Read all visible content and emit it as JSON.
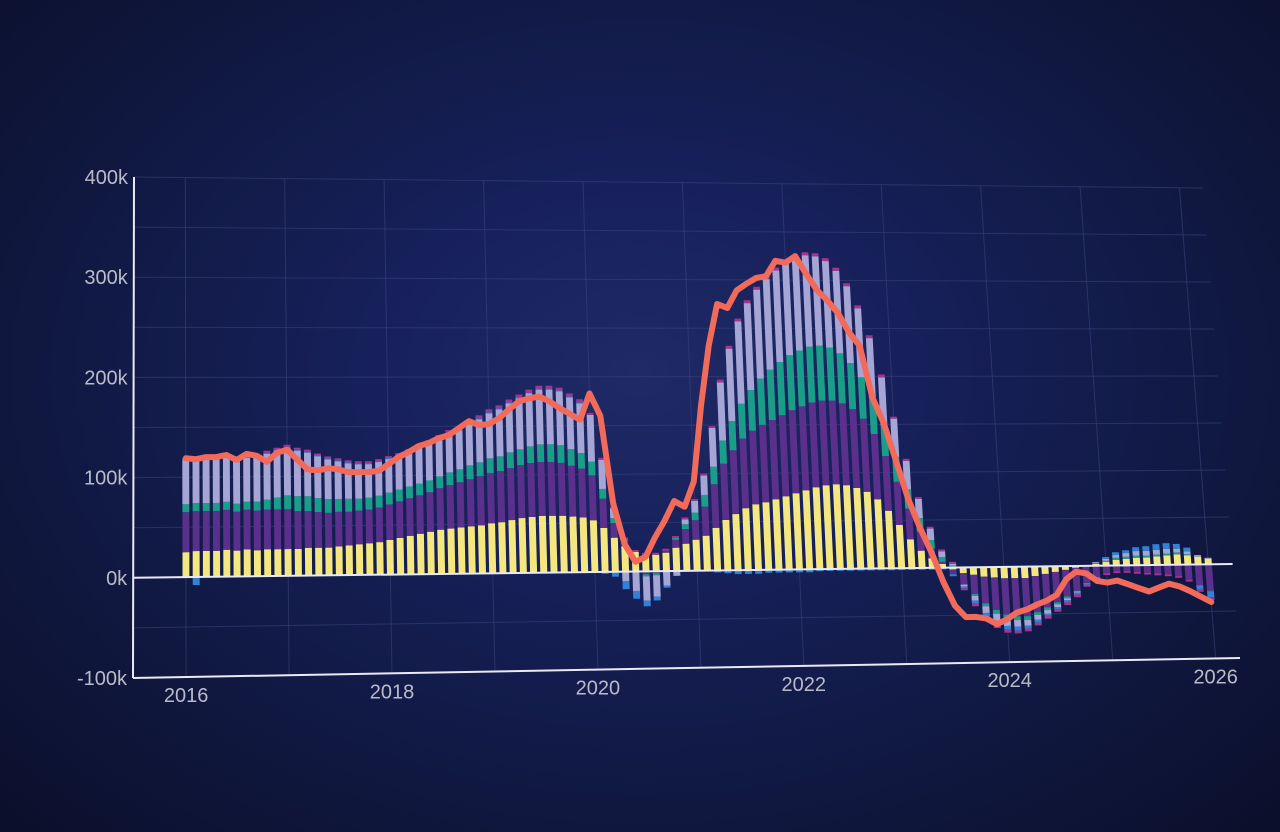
{
  "chart_data": {
    "type": "bar",
    "stacked": true,
    "grid": true,
    "legend": "none",
    "ylim": [
      -100000,
      400000
    ],
    "xlim": [
      2016,
      2026
    ],
    "x_ticks": [
      {
        "value": 2016,
        "label": "2016"
      },
      {
        "value": 2018,
        "label": "2018"
      },
      {
        "value": 2020,
        "label": "2020"
      },
      {
        "value": 2022,
        "label": "2022"
      },
      {
        "value": 2024,
        "label": "2024"
      },
      {
        "value": 2026,
        "label": "2026"
      }
    ],
    "y_ticks": [
      {
        "value": 400000,
        "label": "400k"
      },
      {
        "value": 300000,
        "label": "300k"
      },
      {
        "value": 200000,
        "label": "200k"
      },
      {
        "value": 100000,
        "label": "100k"
      },
      {
        "value": 0,
        "label": "0k"
      },
      {
        "value": -100000,
        "label": "-100k"
      }
    ],
    "colors": {
      "yellow": "#f4e77f",
      "purple": "#5b2f8c",
      "teal": "#1a9e8a",
      "lavender": "#a5a6d6",
      "blue": "#2f82d6",
      "magenta": "#a6338f",
      "total_line": "#f26a5a",
      "axis": "#e9eaf2",
      "grid": "#3a4378"
    },
    "series_order": [
      "yellow",
      "purple",
      "teal",
      "lavender",
      "blue",
      "magenta"
    ],
    "x": [
      2016.0,
      2016.1,
      2016.2,
      2016.3,
      2016.4,
      2016.5,
      2016.6,
      2016.7,
      2016.8,
      2016.9,
      2017.0,
      2017.1,
      2017.2,
      2017.3,
      2017.4,
      2017.5,
      2017.6,
      2017.7,
      2017.8,
      2017.9,
      2018.0,
      2018.1,
      2018.2,
      2018.3,
      2018.4,
      2018.5,
      2018.6,
      2018.7,
      2018.8,
      2018.9,
      2019.0,
      2019.1,
      2019.2,
      2019.3,
      2019.4,
      2019.5,
      2019.6,
      2019.7,
      2019.8,
      2019.9,
      2020.0,
      2020.1,
      2020.2,
      2020.3,
      2020.4,
      2020.5,
      2020.6,
      2020.7,
      2020.8,
      2020.9,
      2021.0,
      2021.1,
      2021.2,
      2021.3,
      2021.4,
      2021.5,
      2021.6,
      2021.7,
      2021.8,
      2021.9,
      2022.0,
      2022.1,
      2022.2,
      2022.3,
      2022.4,
      2022.5,
      2022.6,
      2022.7,
      2022.8,
      2022.9,
      2023.0,
      2023.1,
      2023.2,
      2023.3,
      2023.4,
      2023.5,
      2023.6,
      2023.7,
      2023.8,
      2023.9,
      2024.0,
      2024.1,
      2024.2,
      2024.3,
      2024.4,
      2024.5,
      2024.6,
      2024.7,
      2024.8,
      2024.9,
      2025.0,
      2025.1,
      2025.2,
      2025.3,
      2025.4,
      2025.5,
      2025.6,
      2025.7,
      2025.8,
      2025.9,
      2026.0
    ],
    "series": [
      {
        "key": "yellow",
        "values": [
          25000,
          26000,
          26000,
          26000,
          27000,
          26000,
          27000,
          26000,
          27000,
          27000,
          27000,
          27000,
          28000,
          28000,
          28000,
          29000,
          30000,
          31000,
          32000,
          33000,
          35000,
          37000,
          39000,
          41000,
          43000,
          45000,
          46000,
          47000,
          48000,
          49000,
          51000,
          52000,
          54000,
          56000,
          57000,
          58000,
          58000,
          58000,
          57000,
          56000,
          53000,
          45000,
          35000,
          26000,
          20000,
          17000,
          17000,
          19000,
          24000,
          28000,
          32000,
          36000,
          44000,
          52000,
          58000,
          64000,
          68000,
          70000,
          73000,
          76000,
          79000,
          82000,
          85000,
          87000,
          88000,
          87000,
          84000,
          80000,
          72000,
          60000,
          45000,
          30000,
          18000,
          10000,
          4000,
          -2000,
          -6000,
          -8000,
          -10000,
          -11000,
          -12000,
          -12000,
          -12000,
          -10000,
          -8000,
          -6000,
          -4000,
          -2000,
          0,
          2000,
          4000,
          6000,
          7000,
          8000,
          8000,
          9000,
          10000,
          11000,
          10000,
          8000,
          6000
        ]
      },
      {
        "key": "purple",
        "values": [
          40000,
          40000,
          40000,
          40000,
          40000,
          39000,
          40000,
          40000,
          40000,
          40000,
          40000,
          38000,
          37000,
          36000,
          35000,
          35000,
          34000,
          34000,
          34000,
          35000,
          36000,
          37000,
          38000,
          39000,
          40000,
          42000,
          44000,
          46000,
          48000,
          50000,
          51000,
          52000,
          53000,
          54000,
          55000,
          55000,
          55000,
          54000,
          52000,
          50000,
          46000,
          30000,
          15000,
          5000,
          0,
          -3000,
          -2000,
          2000,
          8000,
          15000,
          20000,
          30000,
          45000,
          58000,
          66000,
          72000,
          76000,
          80000,
          82000,
          84000,
          86000,
          87000,
          88000,
          88000,
          87000,
          85000,
          82000,
          76000,
          68000,
          57000,
          45000,
          32000,
          20000,
          10000,
          2000,
          -5000,
          -12000,
          -20000,
          -28000,
          -34000,
          -38000,
          -40000,
          -40000,
          -38000,
          -35000,
          -32000,
          -28000,
          -24000,
          -18000,
          -12000,
          -8000,
          -6000,
          -6000,
          -7000,
          -8000,
          -9000,
          -10000,
          -12000,
          -16000,
          -22000,
          -28000
        ]
      },
      {
        "key": "teal",
        "values": [
          8000,
          8000,
          8000,
          8000,
          8000,
          8000,
          8000,
          9000,
          10000,
          12000,
          14000,
          15000,
          15000,
          14000,
          14000,
          13000,
          13000,
          12000,
          12000,
          12000,
          12000,
          12000,
          12000,
          12000,
          12000,
          12000,
          13000,
          13000,
          14000,
          14000,
          15000,
          15000,
          16000,
          16000,
          17000,
          18000,
          18000,
          18000,
          17000,
          16000,
          14000,
          10000,
          5000,
          2000,
          0,
          -2000,
          -2000,
          0,
          2000,
          5000,
          8000,
          12000,
          18000,
          24000,
          30000,
          36000,
          42000,
          48000,
          52000,
          55000,
          57000,
          58000,
          58000,
          57000,
          55000,
          52000,
          48000,
          43000,
          38000,
          32000,
          26000,
          20000,
          14000,
          9000,
          5000,
          2000,
          0,
          -2000,
          -3000,
          -4000,
          -4000,
          -4000,
          -4000,
          -3000,
          -3000,
          -2000,
          -2000,
          -1000,
          0,
          1000,
          1000,
          2000,
          2000,
          2000,
          2000,
          2000,
          2000,
          2000,
          1000,
          0,
          -1000
        ]
      },
      {
        "key": "lavender",
        "values": [
          45000,
          45000,
          45000,
          45000,
          45000,
          44000,
          44000,
          45000,
          46000,
          47000,
          48000,
          46000,
          44000,
          42000,
          40000,
          38000,
          36000,
          35000,
          34000,
          34000,
          34000,
          34000,
          35000,
          36000,
          37000,
          38000,
          39000,
          40000,
          42000,
          44000,
          46000,
          48000,
          50000,
          52000,
          54000,
          56000,
          56000,
          55000,
          53000,
          51000,
          48000,
          30000,
          10000,
          -10000,
          -20000,
          -25000,
          -22000,
          -15000,
          -5000,
          5000,
          12000,
          20000,
          40000,
          60000,
          75000,
          85000,
          90000,
          92000,
          94000,
          95000,
          96000,
          96000,
          95000,
          93000,
          90000,
          86000,
          80000,
          72000,
          62000,
          50000,
          40000,
          30000,
          20000,
          12000,
          6000,
          2000,
          -2000,
          -5000,
          -7000,
          -8000,
          -8000,
          -7000,
          -6000,
          -5000,
          -4000,
          -3000,
          -2000,
          -1000,
          0,
          1000,
          2000,
          3000,
          4000,
          5000,
          5000,
          5000,
          5000,
          4000,
          3000,
          2000,
          1000
        ]
      },
      {
        "key": "blue",
        "values": [
          1000,
          -8000,
          1000,
          1000,
          1000,
          1000,
          1000,
          1000,
          1000,
          1000,
          1000,
          1000,
          1000,
          1000,
          1000,
          1000,
          1000,
          1000,
          1000,
          1000,
          1000,
          1000,
          1000,
          1000,
          1000,
          1000,
          1000,
          1000,
          1000,
          1000,
          1000,
          1000,
          1000,
          1000,
          1000,
          1000,
          1000,
          1000,
          1000,
          1000,
          0,
          -2000,
          -5000,
          -8000,
          -8000,
          -6000,
          -4000,
          -2000,
          0,
          0,
          0,
          0,
          -2000,
          -3000,
          -4000,
          -4000,
          -4000,
          -3000,
          -3000,
          -3000,
          -3000,
          -3000,
          -2000,
          -2000,
          -2000,
          -2000,
          -2000,
          -2000,
          -2000,
          -2000,
          -2000,
          -2000,
          -2000,
          -2000,
          -2000,
          -2000,
          -2000,
          -3000,
          -4000,
          -4000,
          -4000,
          -4000,
          -3000,
          -3000,
          -2000,
          -2000,
          -2000,
          -2000,
          -2000,
          -2000,
          2000,
          3000,
          3000,
          4000,
          5000,
          6000,
          6000,
          5000,
          4000,
          -4000,
          -6000
        ]
      },
      {
        "key": "magenta",
        "values": [
          0,
          0,
          2000,
          2000,
          2000,
          2000,
          2000,
          2000,
          2000,
          2000,
          2000,
          2000,
          2000,
          2000,
          2000,
          2000,
          2000,
          2000,
          2000,
          2000,
          2000,
          2000,
          2000,
          3000,
          3000,
          3000,
          3000,
          3000,
          3000,
          3000,
          3000,
          3000,
          3000,
          3000,
          3000,
          3000,
          3000,
          3000,
          3000,
          3000,
          2000,
          2000,
          2000,
          2000,
          2000,
          2000,
          2000,
          2000,
          2000,
          2000,
          2000,
          2000,
          2000,
          3000,
          3000,
          3000,
          3000,
          3000,
          3000,
          3000,
          3000,
          3000,
          3000,
          3000,
          3000,
          3000,
          3000,
          3000,
          3000,
          3000,
          2000,
          2000,
          2000,
          2000,
          2000,
          2000,
          -2000,
          -3000,
          -3000,
          -3000,
          -3000,
          -3000,
          -3000,
          -3000,
          -3000,
          -3000,
          -3000,
          -3000,
          -2000,
          -2000,
          -2000,
          -2000,
          -2000,
          -2000,
          -2000,
          -2000,
          -2000,
          -2000,
          -2000,
          -3000,
          -3000
        ]
      }
    ],
    "total_line": {
      "key": "total_line",
      "x": [
        2016.0,
        2016.1,
        2016.2,
        2016.3,
        2016.4,
        2016.5,
        2016.6,
        2016.7,
        2016.8,
        2016.9,
        2017.0,
        2017.1,
        2017.2,
        2017.3,
        2017.4,
        2017.5,
        2017.6,
        2017.7,
        2017.8,
        2017.9,
        2018.0,
        2018.1,
        2018.2,
        2018.3,
        2018.4,
        2018.5,
        2018.6,
        2018.7,
        2018.8,
        2018.9,
        2019.0,
        2019.1,
        2019.2,
        2019.3,
        2019.4,
        2019.5,
        2019.6,
        2019.7,
        2019.8,
        2019.9,
        2020.0,
        2020.1,
        2020.2,
        2020.3,
        2020.4,
        2020.5,
        2020.6,
        2020.7,
        2020.8,
        2020.9,
        2021.0,
        2021.1,
        2021.2,
        2021.3,
        2021.4,
        2021.5,
        2021.6,
        2021.7,
        2021.8,
        2021.9,
        2022.0,
        2022.1,
        2022.2,
        2022.3,
        2022.4,
        2022.5,
        2022.6,
        2022.7,
        2022.8,
        2022.9,
        2023.0,
        2023.1,
        2023.2,
        2023.3,
        2023.4,
        2023.5,
        2023.6,
        2023.7,
        2023.8,
        2023.9,
        2024.0,
        2024.1,
        2024.2,
        2024.3,
        2024.4,
        2024.5,
        2024.6,
        2024.7,
        2024.8,
        2024.9,
        2025.0,
        2025.1,
        2025.2,
        2025.3,
        2025.4,
        2025.5,
        2025.6,
        2025.7,
        2025.8,
        2025.9,
        2026.0
      ],
      "values": [
        119000,
        118000,
        120000,
        120000,
        122000,
        117000,
        123000,
        121000,
        115000,
        124000,
        127000,
        117000,
        107000,
        106000,
        108000,
        107000,
        104000,
        104000,
        104000,
        105000,
        112000,
        119000,
        124000,
        130000,
        133000,
        138000,
        141000,
        148000,
        155000,
        151000,
        152000,
        158000,
        167000,
        175000,
        178000,
        180000,
        175000,
        168000,
        162000,
        156000,
        183000,
        160000,
        70000,
        28000,
        10000,
        15000,
        35000,
        52000,
        72000,
        66000,
        92000,
        170000,
        232000,
        275000,
        271000,
        289000,
        296000,
        302000,
        304000,
        320000,
        318000,
        325000,
        307000,
        290000,
        279000,
        266000,
        246000,
        232000,
        178000,
        151000,
        112000,
        72000,
        42000,
        16000,
        -15000,
        -40000,
        -52000,
        -52000,
        -54000,
        -60000,
        -55000,
        -48000,
        -45000,
        -40000,
        -36000,
        -30000,
        -14000,
        -6000,
        -8000,
        -16000,
        -18000,
        -16000,
        -20000,
        -24000,
        -28000,
        -24000,
        -20000,
        -23000,
        -28000,
        -34000,
        -40000
      ]
    }
  }
}
